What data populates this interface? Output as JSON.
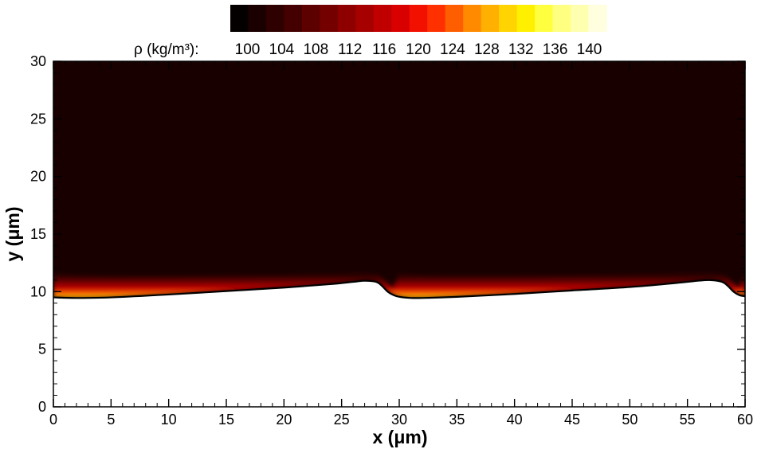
{
  "chart_data": {
    "type": "heatmap",
    "title": "",
    "xlabel": "x (μm)",
    "ylabel": "y (μm)",
    "xlim": [
      0,
      60
    ],
    "ylim": [
      0,
      30
    ],
    "x_ticks": [
      0,
      5,
      10,
      15,
      20,
      25,
      30,
      35,
      40,
      45,
      50,
      55,
      60
    ],
    "y_ticks": [
      0,
      5,
      10,
      15,
      20,
      25,
      30
    ],
    "grid": false,
    "colorbar": {
      "label": "ρ (kg/m³):",
      "placement": "top",
      "range": [
        98,
        142
      ],
      "tick_values": [
        100,
        104,
        108,
        112,
        116,
        120,
        124,
        128,
        132,
        136,
        140
      ],
      "colors": [
        "#050000",
        "#1a0000",
        "#2e0000",
        "#440000",
        "#5c0000",
        "#750000",
        "#8e0000",
        "#a60000",
        "#c00000",
        "#d90000",
        "#f21000",
        "#ff3000",
        "#ff5e00",
        "#ff8a00",
        "#ffb000",
        "#ffd400",
        "#fff000",
        "#ffff40",
        "#ffff80",
        "#ffffb0",
        "#ffffe0"
      ]
    },
    "background_color": "#180000",
    "interface_curve": {
      "x": [
        0,
        2,
        5,
        10,
        15,
        20,
        24,
        26,
        27,
        28,
        28.5,
        29,
        29.5,
        30,
        31,
        32,
        35,
        40,
        45,
        50,
        54,
        56,
        57,
        58,
        58.5,
        59,
        59.5,
        60
      ],
      "y": [
        9.5,
        9.45,
        9.5,
        9.75,
        10.05,
        10.35,
        10.65,
        10.85,
        10.95,
        10.85,
        10.5,
        10.0,
        9.7,
        9.55,
        9.45,
        9.45,
        9.55,
        9.8,
        10.1,
        10.4,
        10.75,
        10.95,
        11.0,
        10.85,
        10.5,
        10.0,
        9.7,
        9.6
      ]
    }
  }
}
